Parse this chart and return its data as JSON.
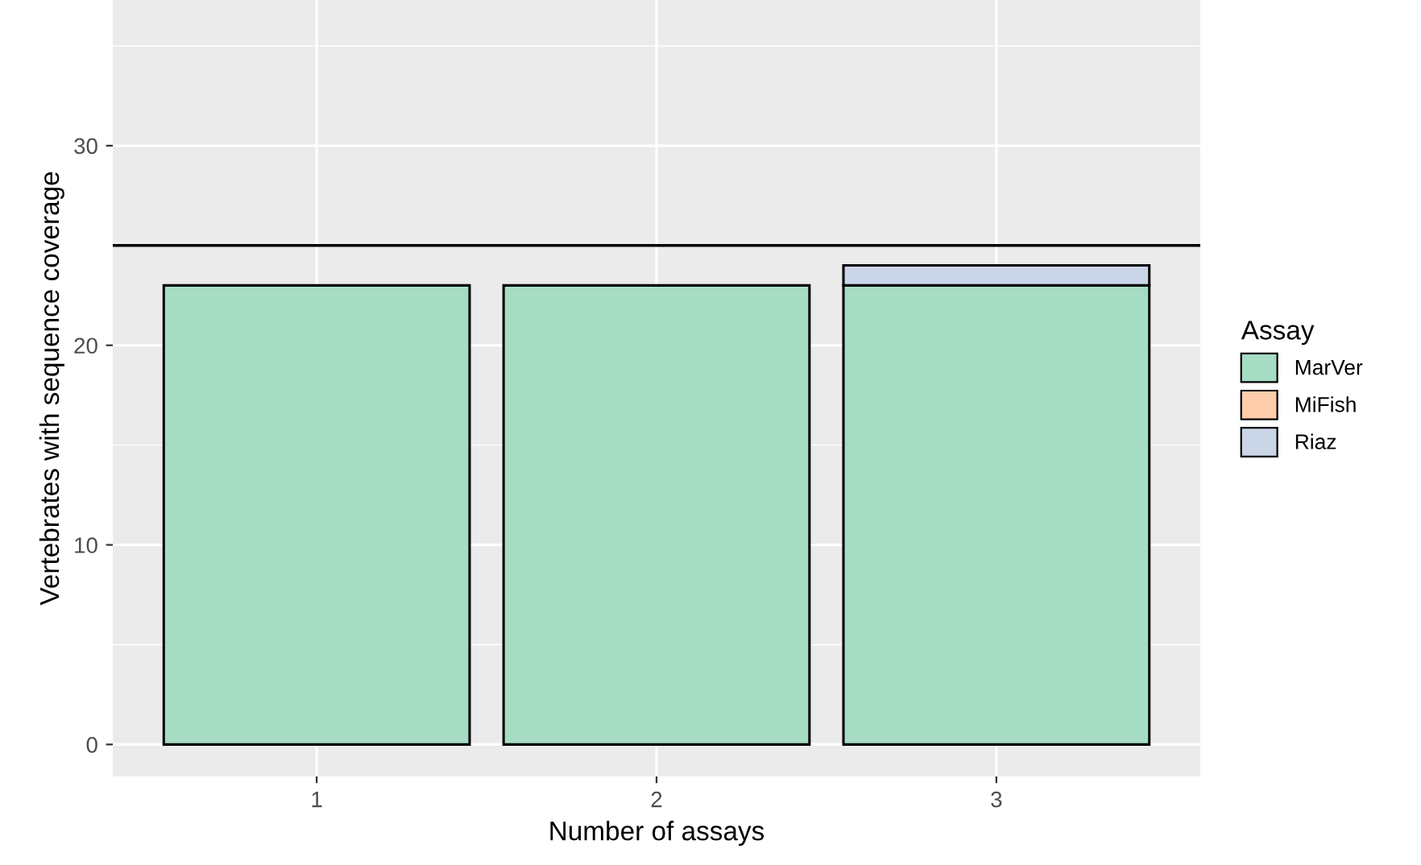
{
  "chart_data": {
    "type": "bar",
    "stacked": true,
    "xlabel": "Number of assays",
    "ylabel": "Vertebrates with sequence coverage",
    "legend_title": "Assay",
    "legend": "right",
    "categories": [
      "1",
      "2",
      "3"
    ],
    "series": [
      {
        "name": "MarVer",
        "color": "#a6dcc4",
        "values": [
          23,
          23,
          23
        ]
      },
      {
        "name": "MiFish",
        "color": "#fdcdac",
        "values": [
          0,
          0,
          0
        ]
      },
      {
        "name": "Riaz",
        "color": "#cbd5e8",
        "values": [
          0,
          0,
          1
        ]
      }
    ],
    "ylim": [
      -1.6,
      37.3
    ],
    "yticks": [
      0,
      10,
      20,
      30
    ],
    "grid": true,
    "ref_lines": [
      {
        "axis": "y",
        "value": 25,
        "color": "#000000"
      }
    ]
  }
}
